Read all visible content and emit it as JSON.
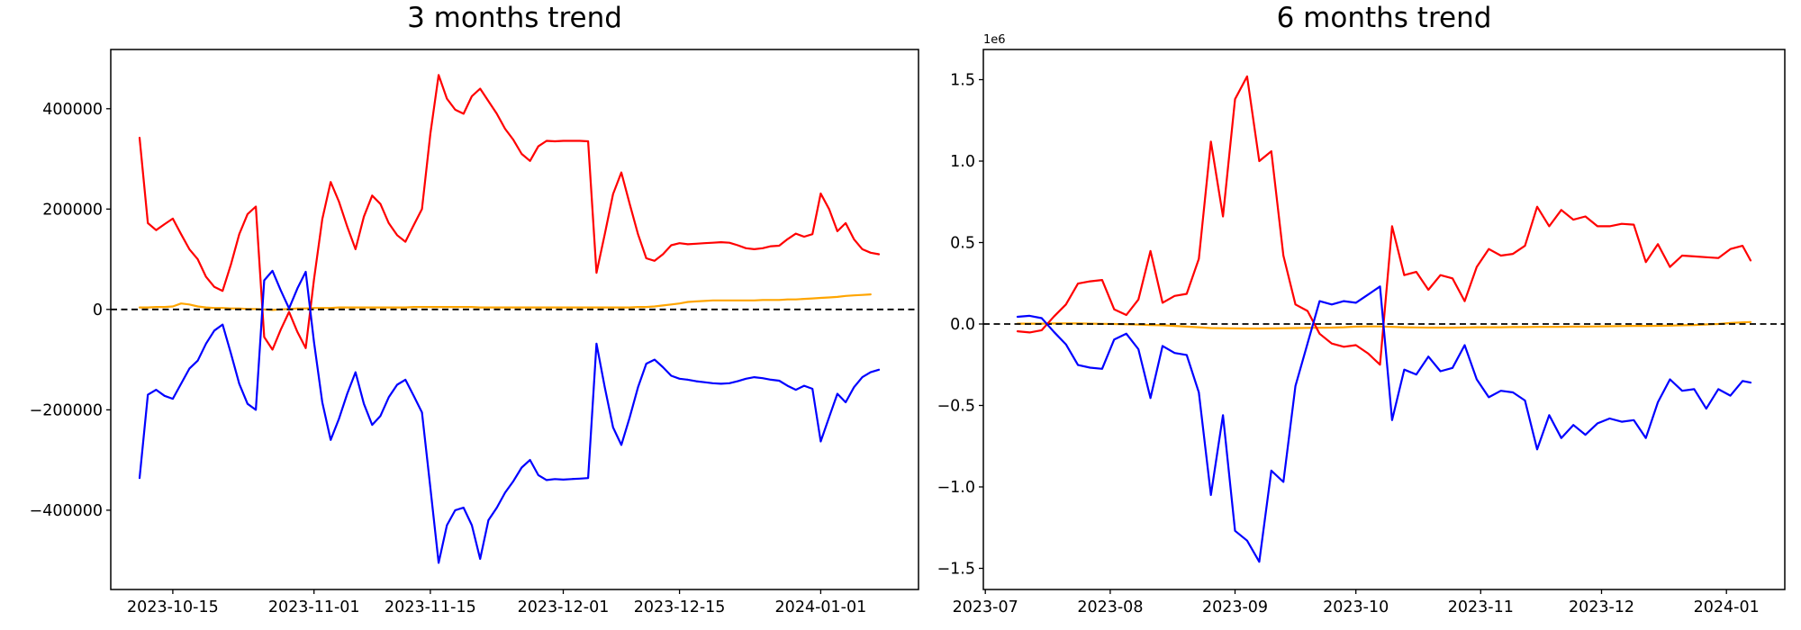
{
  "figure": {
    "background": "#ffffff"
  },
  "chart_data": [
    {
      "type": "line",
      "title": "3 months trend",
      "grid": false,
      "legend": false,
      "ylim": [
        -558000,
        518000
      ],
      "zero_line": {
        "style": "dashed",
        "color": "#000000",
        "value": 0
      },
      "xticks": [
        {
          "date": "2023-10-15",
          "label": "2023-10-15"
        },
        {
          "date": "2023-11-01",
          "label": "2023-11-01"
        },
        {
          "date": "2023-11-15",
          "label": "2023-11-15"
        },
        {
          "date": "2023-12-01",
          "label": "2023-12-01"
        },
        {
          "date": "2023-12-15",
          "label": "2023-12-15"
        },
        {
          "date": "2024-01-01",
          "label": "2024-01-01"
        }
      ],
      "yticks": [
        {
          "value": -400000,
          "label": "−400000"
        },
        {
          "value": -200000,
          "label": "−200000"
        },
        {
          "value": 0,
          "label": "0"
        },
        {
          "value": 200000,
          "label": "200000"
        },
        {
          "value": 400000,
          "label": "400000"
        }
      ],
      "x": [
        "2023-10-11",
        "2023-10-12",
        "2023-10-13",
        "2023-10-14",
        "2023-10-15",
        "2023-10-16",
        "2023-10-17",
        "2023-10-18",
        "2023-10-19",
        "2023-10-20",
        "2023-10-21",
        "2023-10-22",
        "2023-10-23",
        "2023-10-24",
        "2023-10-25",
        "2023-10-26",
        "2023-10-27",
        "2023-10-28",
        "2023-10-29",
        "2023-10-30",
        "2023-10-31",
        "2023-11-01",
        "2023-11-02",
        "2023-11-03",
        "2023-11-04",
        "2023-11-05",
        "2023-11-06",
        "2023-11-07",
        "2023-11-08",
        "2023-11-09",
        "2023-11-10",
        "2023-11-11",
        "2023-11-12",
        "2023-11-13",
        "2023-11-14",
        "2023-11-15",
        "2023-11-16",
        "2023-11-17",
        "2023-11-18",
        "2023-11-19",
        "2023-11-20",
        "2023-11-21",
        "2023-11-22",
        "2023-11-23",
        "2023-11-24",
        "2023-11-25",
        "2023-11-26",
        "2023-11-27",
        "2023-11-28",
        "2023-11-29",
        "2023-11-30",
        "2023-12-01",
        "2023-12-02",
        "2023-12-03",
        "2023-12-04",
        "2023-12-05",
        "2023-12-06",
        "2023-12-07",
        "2023-12-08",
        "2023-12-09",
        "2023-12-10",
        "2023-12-11",
        "2023-12-12",
        "2023-12-13",
        "2023-12-14",
        "2023-12-15",
        "2023-12-16",
        "2023-12-17",
        "2023-12-18",
        "2023-12-19",
        "2023-12-20",
        "2023-12-21",
        "2023-12-22",
        "2023-12-23",
        "2023-12-24",
        "2023-12-25",
        "2023-12-26",
        "2023-12-27",
        "2023-12-28",
        "2023-12-29",
        "2023-12-30",
        "2023-12-31",
        "2024-01-01",
        "2024-01-02",
        "2024-01-03",
        "2024-01-04",
        "2024-01-05",
        "2024-01-06",
        "2024-01-07",
        "2024-01-08"
      ],
      "series": [
        {
          "name": "red-series",
          "color": "#ff0000",
          "values": [
            342000,
            172000,
            158000,
            170000,
            181000,
            150000,
            120000,
            100000,
            65000,
            45000,
            37000,
            90000,
            150000,
            190000,
            205000,
            -55000,
            -80000,
            -40000,
            -5000,
            -45000,
            -77000,
            60000,
            180000,
            254000,
            215000,
            165000,
            120000,
            185000,
            227000,
            210000,
            172000,
            148000,
            135000,
            168000,
            200000,
            350000,
            467000,
            420000,
            398000,
            390000,
            425000,
            440000,
            415000,
            390000,
            360000,
            338000,
            310000,
            296000,
            325000,
            336000,
            335000,
            336000,
            336000,
            336000,
            335000,
            73000,
            150000,
            230000,
            273000,
            210000,
            150000,
            102000,
            97000,
            110000,
            128000,
            132000,
            130000,
            131000,
            132000,
            133000,
            134000,
            133000,
            128000,
            122000,
            120000,
            122000,
            126000,
            127000,
            140000,
            151000,
            145000,
            150000,
            231000,
            200000,
            156000,
            172000,
            140000,
            120000,
            113000,
            110000
          ]
        },
        {
          "name": "blue-series",
          "color": "#0000ff",
          "values": [
            -336000,
            -170000,
            -160000,
            -172000,
            -178000,
            -148000,
            -118000,
            -102000,
            -68000,
            -42000,
            -30000,
            -88000,
            -148000,
            -188000,
            -200000,
            58000,
            77000,
            38000,
            2000,
            42000,
            75000,
            -65000,
            -185000,
            -260000,
            -218000,
            -168000,
            -125000,
            -188000,
            -230000,
            -212000,
            -175000,
            -150000,
            -140000,
            -172000,
            -205000,
            -355000,
            -505000,
            -430000,
            -400000,
            -395000,
            -430000,
            -497000,
            -420000,
            -395000,
            -365000,
            -342000,
            -315000,
            -300000,
            -330000,
            -340000,
            -338000,
            -339000,
            -338000,
            -337000,
            -336000,
            -68000,
            -155000,
            -235000,
            -270000,
            -215000,
            -155000,
            -108000,
            -100000,
            -115000,
            -132000,
            -138000,
            -140000,
            -143000,
            -145000,
            -147000,
            -148000,
            -147000,
            -143000,
            -138000,
            -135000,
            -137000,
            -140000,
            -142000,
            -152000,
            -160000,
            -152000,
            -158000,
            -263000,
            -215000,
            -168000,
            -185000,
            -155000,
            -135000,
            -125000,
            -120000
          ]
        },
        {
          "name": "orange-series",
          "color": "#ffa500",
          "values": [
            4000,
            4000,
            5000,
            5000,
            6000,
            12000,
            10000,
            6000,
            4000,
            3000,
            3000,
            2000,
            2000,
            1000,
            1000,
            0,
            -1000,
            0,
            1000,
            2000,
            2000,
            3000,
            3000,
            3000,
            4000,
            4000,
            4000,
            4000,
            4000,
            4000,
            4000,
            4000,
            4000,
            5000,
            5000,
            5000,
            5000,
            5000,
            5000,
            5000,
            5000,
            4000,
            4000,
            4000,
            4000,
            4000,
            4000,
            4000,
            4000,
            4000,
            4000,
            4000,
            4000,
            4000,
            4000,
            4000,
            4000,
            4000,
            4000,
            4000,
            5000,
            5000,
            6000,
            8000,
            10000,
            12000,
            15000,
            16000,
            17000,
            18000,
            18000,
            18000,
            18000,
            18000,
            18000,
            19000,
            19000,
            19000,
            20000,
            20000,
            21000,
            22000,
            23000,
            24000,
            25000,
            27000,
            28000,
            29000,
            30000
          ]
        }
      ]
    },
    {
      "type": "line",
      "title": "6 months trend",
      "grid": false,
      "legend": false,
      "offset_text": "1e6",
      "ylim": [
        -1630000,
        1685000
      ],
      "zero_line": {
        "style": "dashed",
        "color": "#000000",
        "value": 0
      },
      "xticks": [
        {
          "date": "2023-07-01",
          "label": "2023-07"
        },
        {
          "date": "2023-08-01",
          "label": "2023-08"
        },
        {
          "date": "2023-09-01",
          "label": "2023-09"
        },
        {
          "date": "2023-10-01",
          "label": "2023-10"
        },
        {
          "date": "2023-11-01",
          "label": "2023-11"
        },
        {
          "date": "2023-12-01",
          "label": "2023-12"
        },
        {
          "date": "2024-01-01",
          "label": "2024-01"
        }
      ],
      "yticks": [
        {
          "value": -1500000,
          "label": "−1.5"
        },
        {
          "value": -1000000,
          "label": "−1.0"
        },
        {
          "value": -500000,
          "label": "−0.5"
        },
        {
          "value": 0,
          "label": "0.0"
        },
        {
          "value": 500000,
          "label": "0.5"
        },
        {
          "value": 1000000,
          "label": "1.0"
        },
        {
          "value": 1500000,
          "label": "1.5"
        }
      ],
      "x": [
        "2023-07-09",
        "2023-07-12",
        "2023-07-15",
        "2023-07-18",
        "2023-07-21",
        "2023-07-24",
        "2023-07-27",
        "2023-07-30",
        "2023-08-02",
        "2023-08-05",
        "2023-08-08",
        "2023-08-11",
        "2023-08-14",
        "2023-08-17",
        "2023-08-20",
        "2023-08-23",
        "2023-08-26",
        "2023-08-29",
        "2023-09-01",
        "2023-09-04",
        "2023-09-07",
        "2023-09-10",
        "2023-09-13",
        "2023-09-16",
        "2023-09-19",
        "2023-09-22",
        "2023-09-25",
        "2023-09-28",
        "2023-10-01",
        "2023-10-04",
        "2023-10-07",
        "2023-10-10",
        "2023-10-13",
        "2023-10-16",
        "2023-10-19",
        "2023-10-22",
        "2023-10-25",
        "2023-10-28",
        "2023-10-31",
        "2023-11-03",
        "2023-11-06",
        "2023-11-09",
        "2023-11-12",
        "2023-11-15",
        "2023-11-18",
        "2023-11-21",
        "2023-11-24",
        "2023-11-27",
        "2023-11-30",
        "2023-12-03",
        "2023-12-06",
        "2023-12-09",
        "2023-12-12",
        "2023-12-15",
        "2023-12-18",
        "2023-12-21",
        "2023-12-24",
        "2023-12-27",
        "2023-12-30",
        "2024-01-02",
        "2024-01-05",
        "2024-01-07"
      ],
      "series": [
        {
          "name": "red-series",
          "color": "#ff0000",
          "values": [
            -45000,
            -52000,
            -38000,
            45000,
            120000,
            248000,
            262000,
            270000,
            90000,
            55000,
            150000,
            448000,
            130000,
            172000,
            185000,
            400000,
            1120000,
            660000,
            1380000,
            1520000,
            1000000,
            1060000,
            420000,
            120000,
            80000,
            -60000,
            -120000,
            -140000,
            -130000,
            -180000,
            -250000,
            600000,
            300000,
            320000,
            210000,
            300000,
            280000,
            140000,
            350000,
            460000,
            420000,
            430000,
            480000,
            720000,
            600000,
            700000,
            640000,
            660000,
            600000,
            600000,
            615000,
            610000,
            380000,
            490000,
            350000,
            420000,
            415000,
            410000,
            405000,
            460000,
            480000,
            390000
          ]
        },
        {
          "name": "blue-series",
          "color": "#0000ff",
          "values": [
            44000,
            50000,
            36000,
            -48000,
            -125000,
            -252000,
            -268000,
            -275000,
            -95000,
            -60000,
            -155000,
            -455000,
            -135000,
            -178000,
            -190000,
            -420000,
            -1050000,
            -560000,
            -1270000,
            -1330000,
            -1460000,
            -900000,
            -970000,
            -380000,
            -120000,
            140000,
            120000,
            140000,
            130000,
            180000,
            230000,
            -590000,
            -280000,
            -310000,
            -200000,
            -290000,
            -270000,
            -130000,
            -340000,
            -450000,
            -410000,
            -420000,
            -470000,
            -770000,
            -560000,
            -700000,
            -620000,
            -680000,
            -610000,
            -580000,
            -600000,
            -590000,
            -700000,
            -480000,
            -340000,
            -410000,
            -400000,
            -520000,
            -400000,
            -440000,
            -350000,
            -360000
          ]
        },
        {
          "name": "orange-series",
          "color": "#ffa500",
          "values": [
            2000,
            2000,
            2000,
            3000,
            3000,
            3000,
            2000,
            1000,
            0,
            -2000,
            -4000,
            -6000,
            -8000,
            -12000,
            -16000,
            -20000,
            -25000,
            -26000,
            -27000,
            -28000,
            -28000,
            -27000,
            -26000,
            -25000,
            -24000,
            -23000,
            -22000,
            -20000,
            -16000,
            -15000,
            -15000,
            -18000,
            -20000,
            -21000,
            -22000,
            -22000,
            -22000,
            -21000,
            -20000,
            -20000,
            -20000,
            -19000,
            -19000,
            -18000,
            -18000,
            -17000,
            -16000,
            -16000,
            -15000,
            -14000,
            -13000,
            -12000,
            -12000,
            -11000,
            -10000,
            -8000,
            -6000,
            -3000,
            0,
            6000,
            10000,
            12000
          ]
        }
      ]
    }
  ]
}
